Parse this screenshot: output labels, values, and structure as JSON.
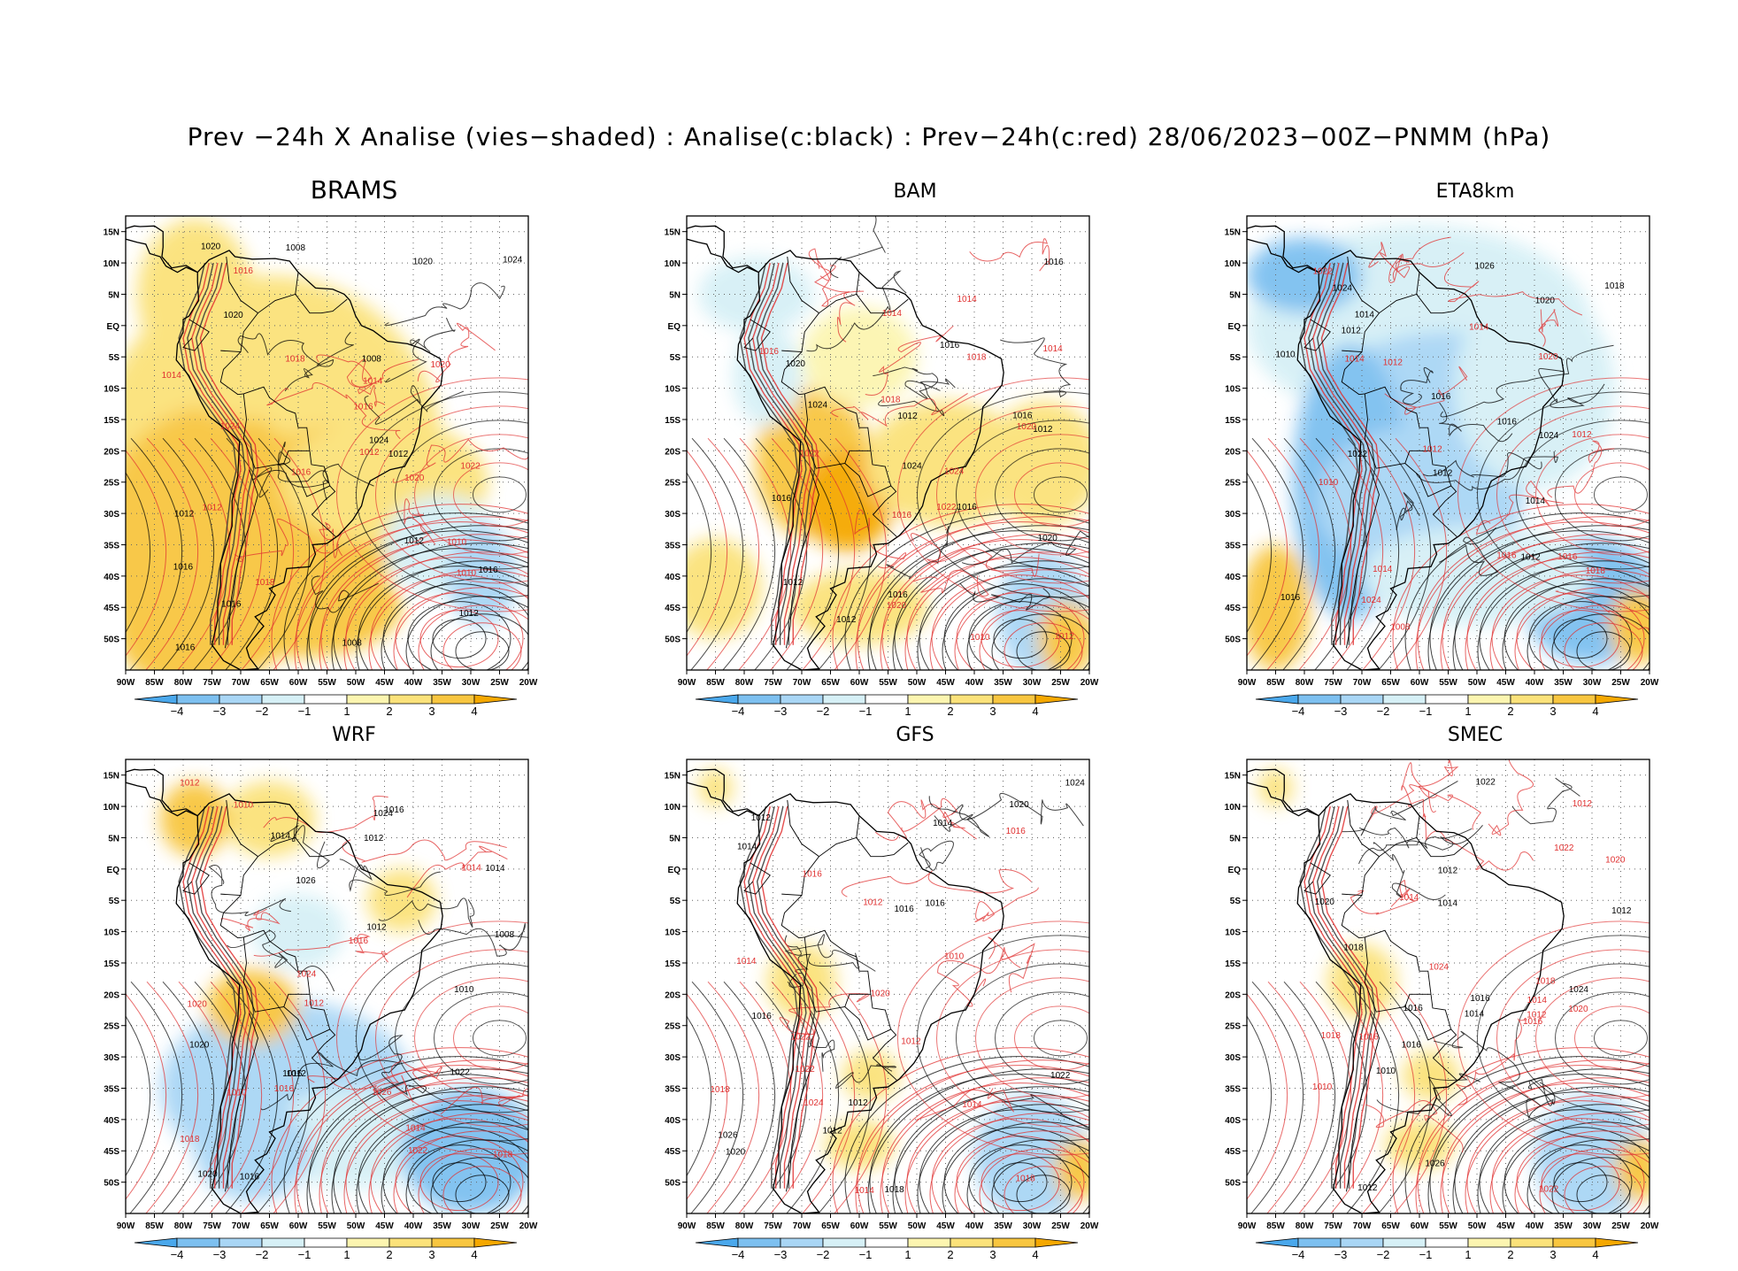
{
  "title": "Prev −24h X Analise (vies−shaded) : Analise(c:black) : Prev−24h(c:red) 28/06/2023−00Z−PNMM (hPa)",
  "x_ticks": [
    "90W",
    "85W",
    "80W",
    "75W",
    "70W",
    "65W",
    "60W",
    "55W",
    "50W",
    "45W",
    "40W",
    "35W",
    "30W",
    "25W",
    "20W"
  ],
  "y_ticks": [
    "15N",
    "10N",
    "5N",
    "EQ",
    "5S",
    "10S",
    "15S",
    "20S",
    "25S",
    "30S",
    "35S",
    "40S",
    "45S",
    "50S"
  ],
  "colorbar": {
    "labels": [
      "−4",
      "−3",
      "−2",
      "−1",
      "1",
      "2",
      "3",
      "4"
    ],
    "colors": [
      "#4aa8ec",
      "#7dc0f0",
      "#a9d6f5",
      "#d6f0f6",
      "#ffffff",
      "#fcf5b0",
      "#fbe27a",
      "#f8c640",
      "#f5a800"
    ]
  },
  "colors": {
    "analysis_contour": "#000000",
    "forecast_contour": "#e03030"
  },
  "panels": [
    {
      "name": "BRAMS",
      "bias": "warm",
      "labels_black": [
        "1008",
        "1008",
        "1012",
        "1012",
        "1016",
        "1020",
        "1024",
        "1008",
        "1012",
        "1016",
        "1020",
        "1024",
        "1016",
        "1016",
        "1020",
        "1012"
      ],
      "labels_red": [
        "1010",
        "1010",
        "1014",
        "1012",
        "1018",
        "1020",
        "1022",
        "1024",
        "1016",
        "1018",
        "1014",
        "1020",
        "1016",
        "1016",
        "1012"
      ]
    },
    {
      "name": "BAM",
      "bias": "mixed",
      "labels_black": [
        "1012",
        "1016",
        "1012",
        "1016",
        "1020",
        "1024",
        "1012",
        "1016",
        "1016",
        "1012",
        "1016",
        "1020",
        "1016",
        "1024"
      ],
      "labels_red": [
        "1016",
        "1014",
        "1010",
        "1012",
        "1014",
        "1018",
        "1022",
        "1024",
        "1022",
        "1020",
        "1020",
        "1014",
        "1018",
        "1016"
      ]
    },
    {
      "name": "ETA8km",
      "bias": "cold",
      "labels_black": [
        "1012",
        "1016",
        "1010",
        "1012",
        "1014",
        "1016",
        "1018",
        "1020",
        "1022",
        "1024",
        "1026",
        "1012",
        "1014",
        "1016",
        "1024"
      ],
      "labels_red": [
        "1012",
        "1014",
        "1010",
        "1012",
        "1014",
        "1016",
        "1018",
        "1020",
        "1022",
        "1024",
        "1008",
        "1016",
        "1012",
        "1014"
      ]
    },
    {
      "name": "WRF",
      "bias": "cold-south",
      "labels_black": [
        "1012",
        "1016",
        "1010",
        "1014",
        "1012",
        "1016",
        "1020",
        "1024",
        "1022",
        "1026",
        "1008",
        "1012",
        "1014",
        "1016",
        "1020"
      ],
      "labels_red": [
        "1012",
        "1014",
        "1010",
        "1016",
        "1018",
        "1020",
        "1022",
        "1024",
        "1026",
        "1014",
        "1012",
        "1016",
        "1010",
        "1018"
      ]
    },
    {
      "name": "GFS",
      "bias": "neutral",
      "labels_black": [
        "1012",
        "1016",
        "1014",
        "1012",
        "1016",
        "1018",
        "1020",
        "1022",
        "1024",
        "1026",
        "1012",
        "1014",
        "1016",
        "1020"
      ],
      "labels_red": [
        "1012",
        "1016",
        "1014",
        "1010",
        "1014",
        "1018",
        "1020",
        "1022",
        "1024",
        "1016",
        "1012",
        "1014",
        "1018",
        "1022"
      ]
    },
    {
      "name": "SMEC",
      "bias": "neutral",
      "labels_black": [
        "1012",
        "1016",
        "1010",
        "1014",
        "1012",
        "1016",
        "1018",
        "1020",
        "1022",
        "1024",
        "1026",
        "1012",
        "1014",
        "1016"
      ],
      "labels_red": [
        "1012",
        "1014",
        "1010",
        "1016",
        "1018",
        "1020",
        "1022",
        "1024",
        "1014",
        "1012",
        "1016",
        "1018",
        "1020",
        "1022"
      ]
    }
  ]
}
